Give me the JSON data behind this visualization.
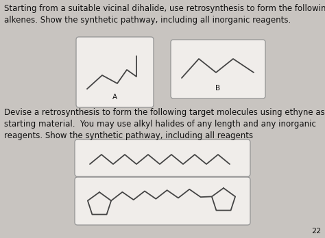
{
  "bg_color": "#c8c4c0",
  "box_color": "#f0edea",
  "box_edge_color": "#999999",
  "line_color": "#444444",
  "text_color": "#111111",
  "text1": "Starting from a suitable vicinal dihalide, use retrosynthesis to form the following\nalkenes. Show the synthetic pathway, including all inorganic reagents.",
  "text2": "Devise a retrosynthesis to form the following target molecules using ethyne as a\nstarting material.  You may use alkyl halides of any length and any inorganic\nreagents. Show the synthetic pathway, including all reagents",
  "label_A": "A",
  "label_B": "B",
  "page_num": "22",
  "font_size_text": 8.5,
  "font_size_label": 7.5
}
